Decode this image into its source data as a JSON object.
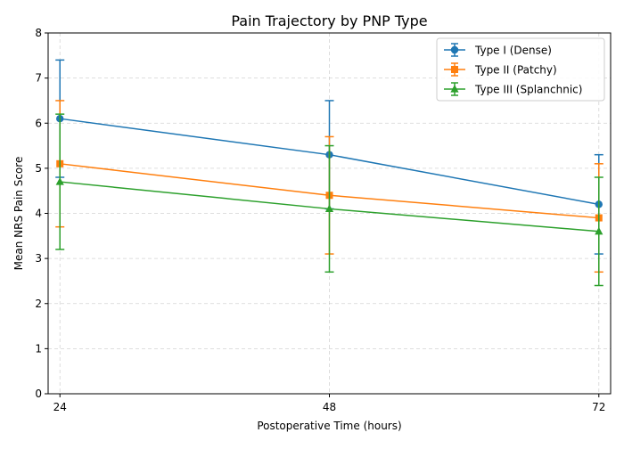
{
  "chart_data": {
    "type": "line",
    "title": "Pain Trajectory by PNP Type",
    "xlabel": "Postoperative Time (hours)",
    "ylabel": "Mean NRS Pain Score",
    "x": [
      24,
      48,
      72
    ],
    "x_tick_labels": [
      "24",
      "48",
      "72"
    ],
    "ylim": [
      0,
      8
    ],
    "y_ticks": [
      0,
      1,
      2,
      3,
      4,
      5,
      6,
      7,
      8
    ],
    "grid": true,
    "legend_position": "top-right",
    "series": [
      {
        "name": "Type I (Dense)",
        "color": "#1f77b4",
        "marker": "circle",
        "values": [
          6.1,
          5.3,
          4.2
        ],
        "error": [
          1.3,
          1.2,
          1.1
        ]
      },
      {
        "name": "Type II (Patchy)",
        "color": "#ff7f0e",
        "marker": "square",
        "values": [
          5.1,
          4.4,
          3.9
        ],
        "error": [
          1.4,
          1.3,
          1.2
        ]
      },
      {
        "name": "Type III (Splanchnic)",
        "color": "#2ca02c",
        "marker": "triangle",
        "values": [
          4.7,
          4.1,
          3.6
        ],
        "error": [
          1.5,
          1.4,
          1.2
        ]
      }
    ]
  }
}
